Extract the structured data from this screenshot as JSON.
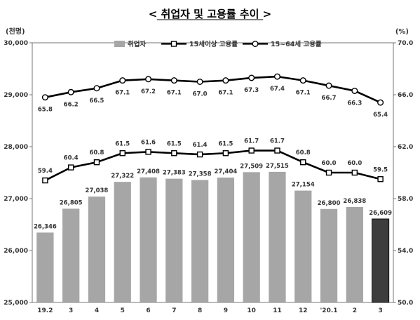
{
  "chart_data": {
    "type": "bar",
    "title": "< 취업자 및 고용률 추이 >",
    "left_unit": "(천명)",
    "right_unit": "(%)",
    "categories": [
      "19.2",
      "3",
      "4",
      "5",
      "6",
      "7",
      "8",
      "9",
      "10",
      "11",
      "12",
      "'20.1",
      "2",
      "3"
    ],
    "left_axis": {
      "min": 25000,
      "max": 30000,
      "ticks": [
        "25,000",
        "26,000",
        "27,000",
        "28,000",
        "29,000",
        "30,000"
      ]
    },
    "right_axis": {
      "min": 50.0,
      "max": 70.0,
      "ticks": [
        "50.0",
        "54.0",
        "58.0",
        "62.0",
        "66.0",
        "70.0"
      ]
    },
    "series": [
      {
        "name": "취업자",
        "kind": "bar",
        "axis": "left",
        "values": [
          26346,
          26805,
          27038,
          27322,
          27408,
          27383,
          27358,
          27404,
          27509,
          27515,
          27154,
          26800,
          26838,
          26609
        ],
        "labels": [
          "26,346",
          "26,805",
          "27,038",
          "27,322",
          "27,408",
          "27,383",
          "27,358",
          "27,404",
          "27,509",
          "27,515",
          "27,154",
          "26,800",
          "26,838",
          "26,609"
        ],
        "color": "#a6a6a6",
        "highlight_last_color": "#3d3d3d"
      },
      {
        "name": "15세이상 고용률",
        "kind": "line",
        "marker": "square",
        "axis": "right",
        "values": [
          59.4,
          60.4,
          60.8,
          61.5,
          61.6,
          61.5,
          61.4,
          61.5,
          61.7,
          61.7,
          60.8,
          60.0,
          60.0,
          59.5
        ],
        "labels": [
          "59.4",
          "60.4",
          "60.8",
          "61.5",
          "61.6",
          "61.5",
          "61.4",
          "61.5",
          "61.7",
          "61.7",
          "60.8",
          "60.0",
          "60.0",
          "59.5"
        ],
        "color": "#000000"
      },
      {
        "name": "15~64세 고용률",
        "kind": "line",
        "marker": "circle",
        "axis": "right",
        "values": [
          65.8,
          66.2,
          66.5,
          67.1,
          67.2,
          67.1,
          67.0,
          67.1,
          67.3,
          67.4,
          67.1,
          66.7,
          66.3,
          65.4
        ],
        "labels": [
          "65.8",
          "66.2",
          "66.5",
          "67.1",
          "67.2",
          "67.1",
          "67.0",
          "67.1",
          "67.3",
          "67.4",
          "67.1",
          "66.7",
          "66.3",
          "65.4"
        ],
        "color": "#000000"
      }
    ],
    "legend": {
      "placement": "top"
    }
  }
}
